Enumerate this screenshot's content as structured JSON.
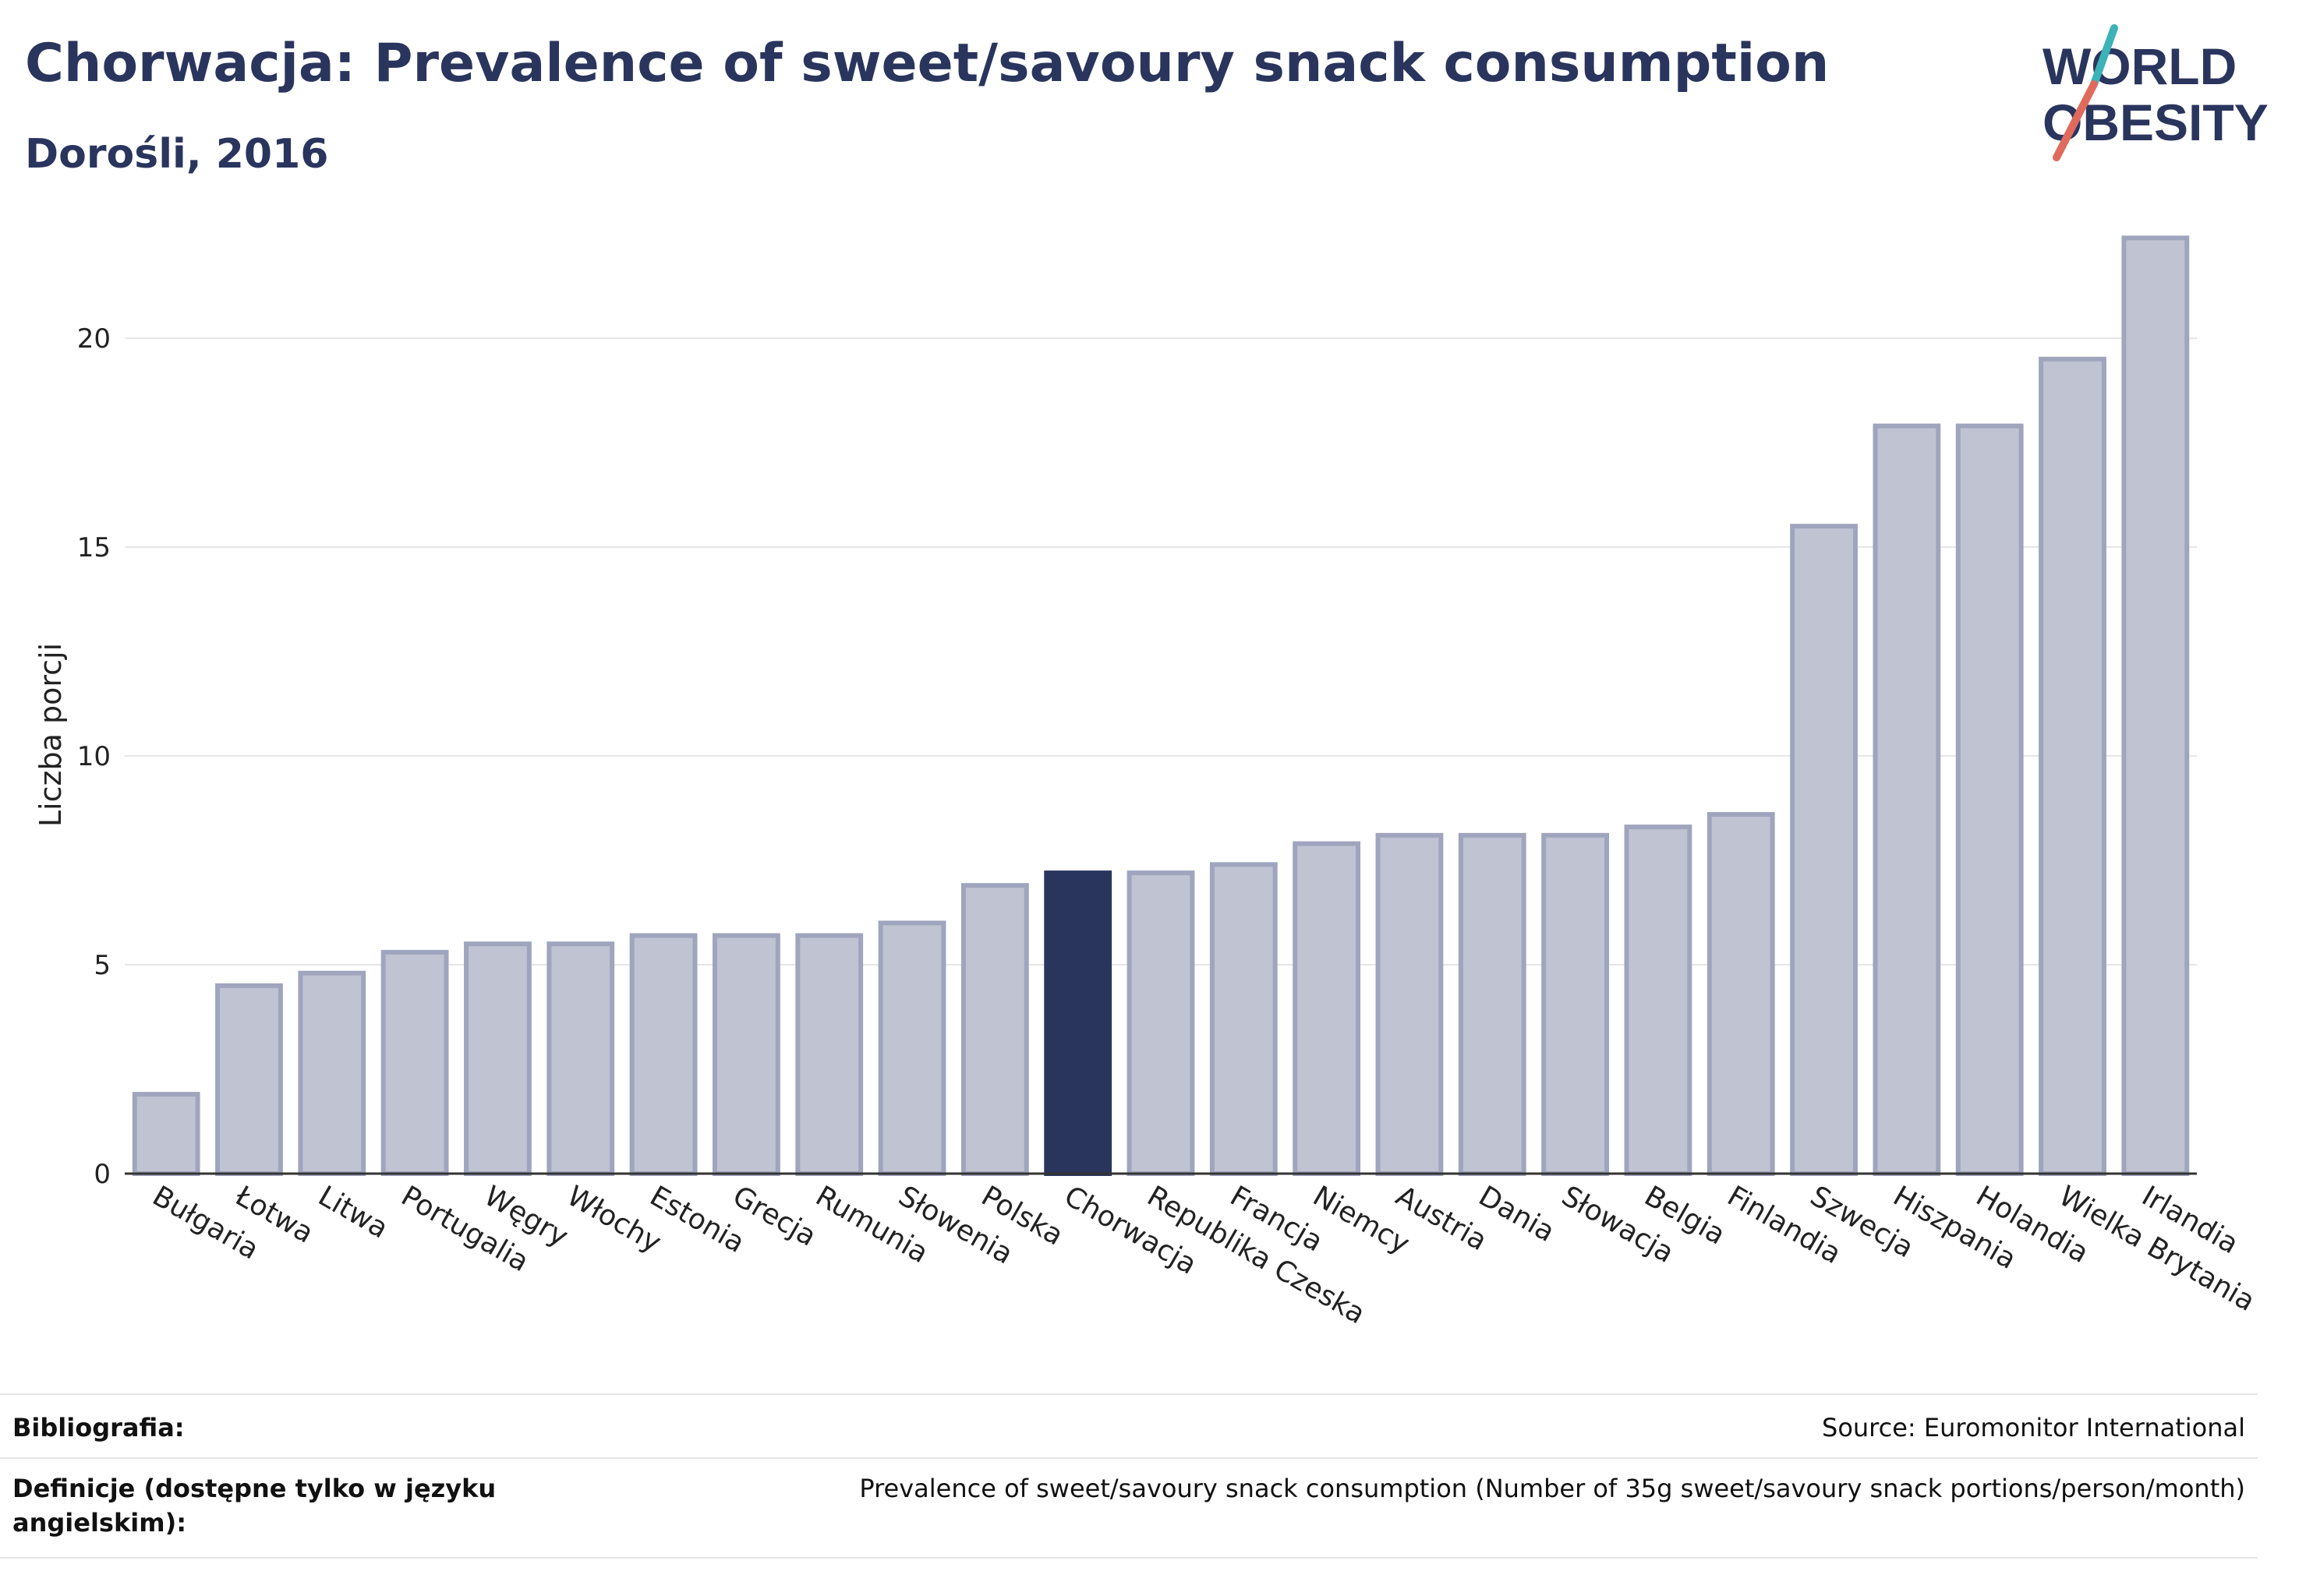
{
  "header": {
    "title": "Chorwacja: Prevalence of sweet/savoury snack consumption",
    "subtitle": "Dorośli, 2016"
  },
  "logo": {
    "line1": "WORLD",
    "line2": "OBESITY",
    "accent_teal": "#3bb3b8",
    "accent_red": "#e06a5c",
    "text_color": "#2a355e"
  },
  "chart_data": {
    "type": "bar",
    "title": "",
    "xlabel": "",
    "ylabel": "Liczba porcji",
    "ylim": [
      0,
      22.5
    ],
    "yticks": [
      0,
      5,
      10,
      15,
      20
    ],
    "grid": true,
    "categories": [
      "Bułgaria",
      "Łotwa",
      "Litwa",
      "Portugalia",
      "Węgry",
      "Włochy",
      "Estonia",
      "Grecja",
      "Rumunia",
      "Słowenia",
      "Polska",
      "Chorwacja",
      "Republika Czeska",
      "Francja",
      "Niemcy",
      "Austria",
      "Dania",
      "Słowacja",
      "Belgia",
      "Finlandia",
      "Szwecja",
      "Hiszpania",
      "Holandia",
      "Wielka Brytania",
      "Irlandia"
    ],
    "values": [
      1.9,
      4.5,
      4.8,
      5.3,
      5.5,
      5.5,
      5.7,
      5.7,
      5.7,
      6.0,
      6.9,
      7.2,
      7.2,
      7.4,
      7.9,
      8.1,
      8.1,
      8.1,
      8.3,
      8.6,
      15.5,
      17.9,
      17.9,
      19.5,
      22.4
    ],
    "highlight": "Chorwacja",
    "colors": {
      "bar": "#c0c3d2",
      "bar_border": "#9fa5bd",
      "highlight": "#2a355e",
      "grid": "#e6e6e6",
      "axis": "#333333"
    }
  },
  "footer": {
    "bibliography_label": "Bibliografia:",
    "bibliography_value": "Source: Euromonitor International",
    "definitions_label": "Definicje (dostępne tylko w języku angielskim):",
    "definitions_value": "Prevalence of sweet/savoury snack consumption (Number of 35g sweet/savoury snack portions/person/month)"
  }
}
